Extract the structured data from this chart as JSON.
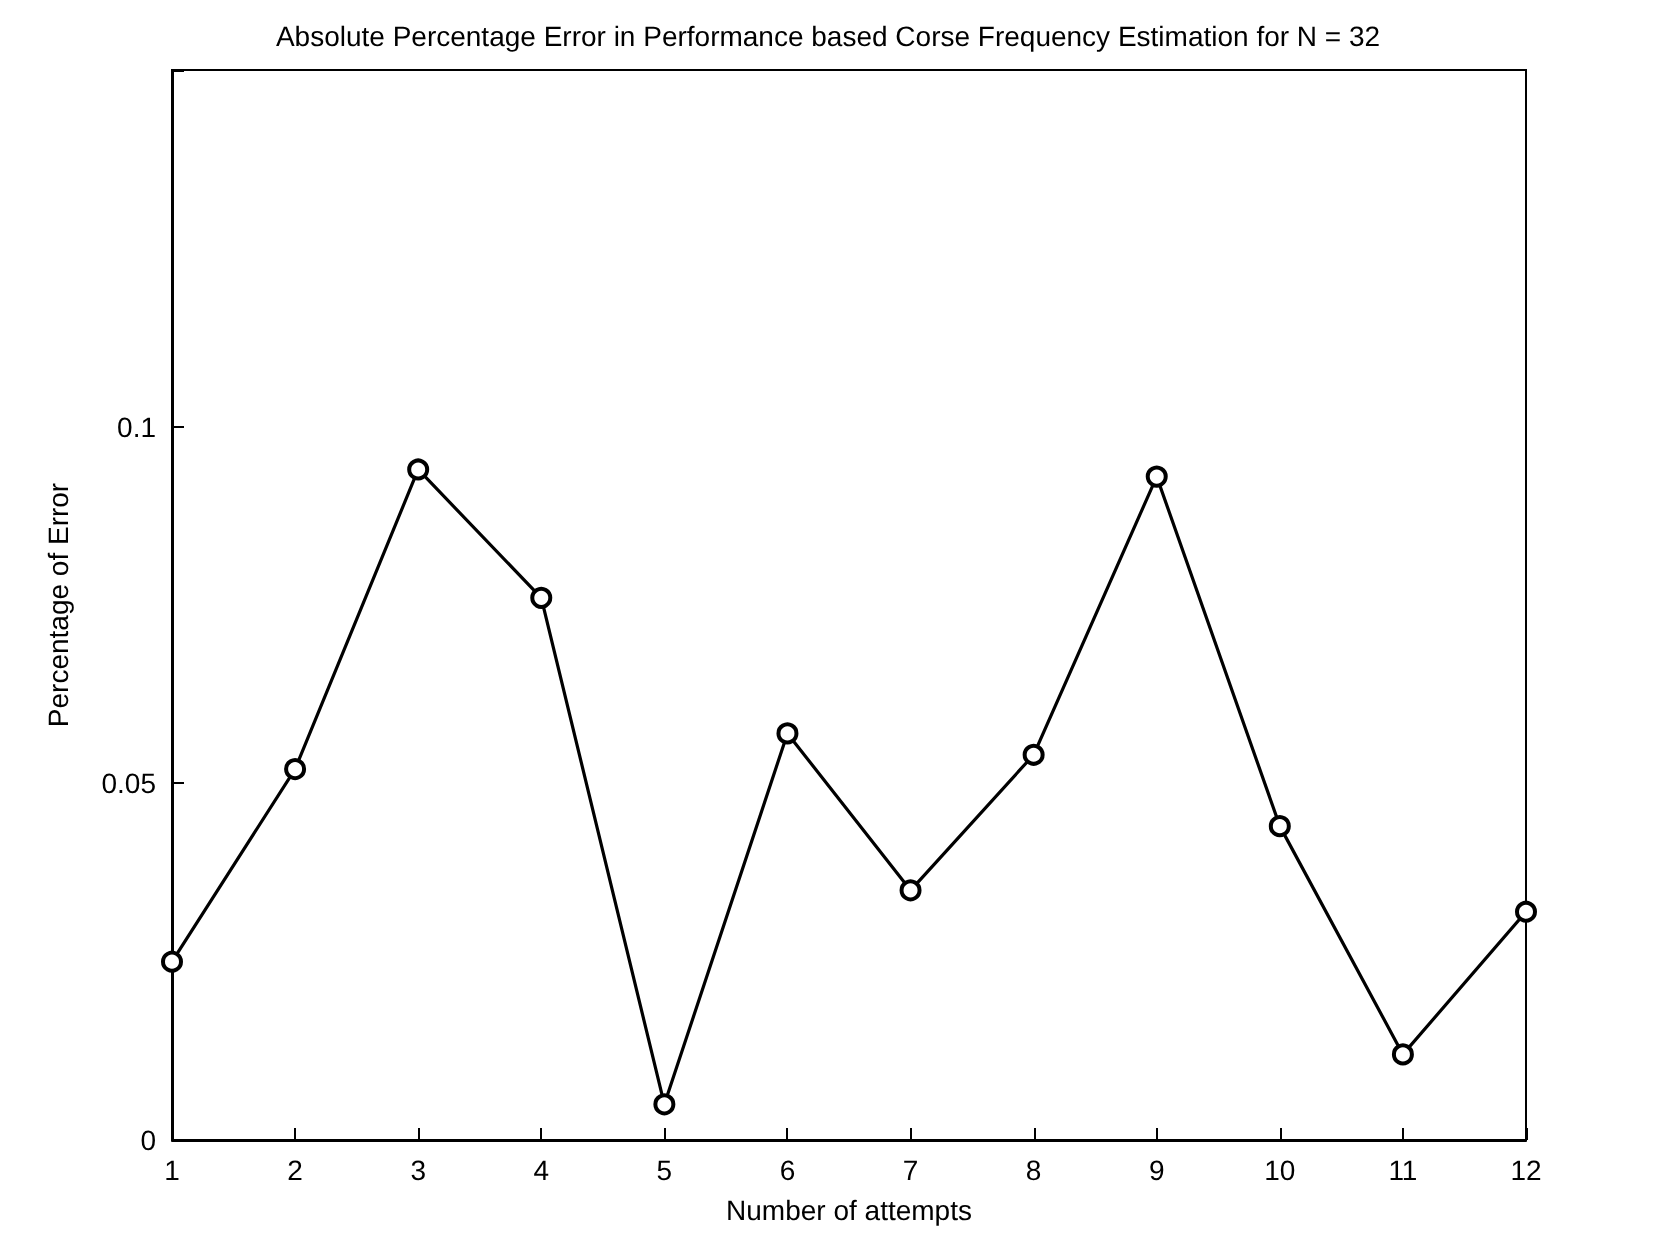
{
  "chart_data": {
    "type": "line",
    "title": "Absolute Percentage Error in Performance based Corse Frequency Estimation for N = 32",
    "xlabel": "Number of attempts",
    "ylabel": "Percentage of Error",
    "x": [
      1,
      2,
      3,
      4,
      5,
      6,
      7,
      8,
      9,
      10,
      11,
      12
    ],
    "series": [
      {
        "color": "#000000",
        "values": [
          0.025,
          0.052,
          0.094,
          0.076,
          0.005,
          0.057,
          0.035,
          0.054,
          0.093,
          0.044,
          0.012,
          0.032
        ]
      }
    ],
    "xlim": [
      1,
      12
    ],
    "xticks": [
      1,
      2,
      3,
      4,
      5,
      6,
      7,
      8,
      9,
      10,
      11,
      12
    ],
    "ylim": [
      0,
      0.15
    ],
    "yticks": [
      0,
      0.05,
      0.1,
      {
        "value": 0.15,
        "label": null
      }
    ],
    "grid": false,
    "marker": "circle",
    "line_style": "solid"
  }
}
